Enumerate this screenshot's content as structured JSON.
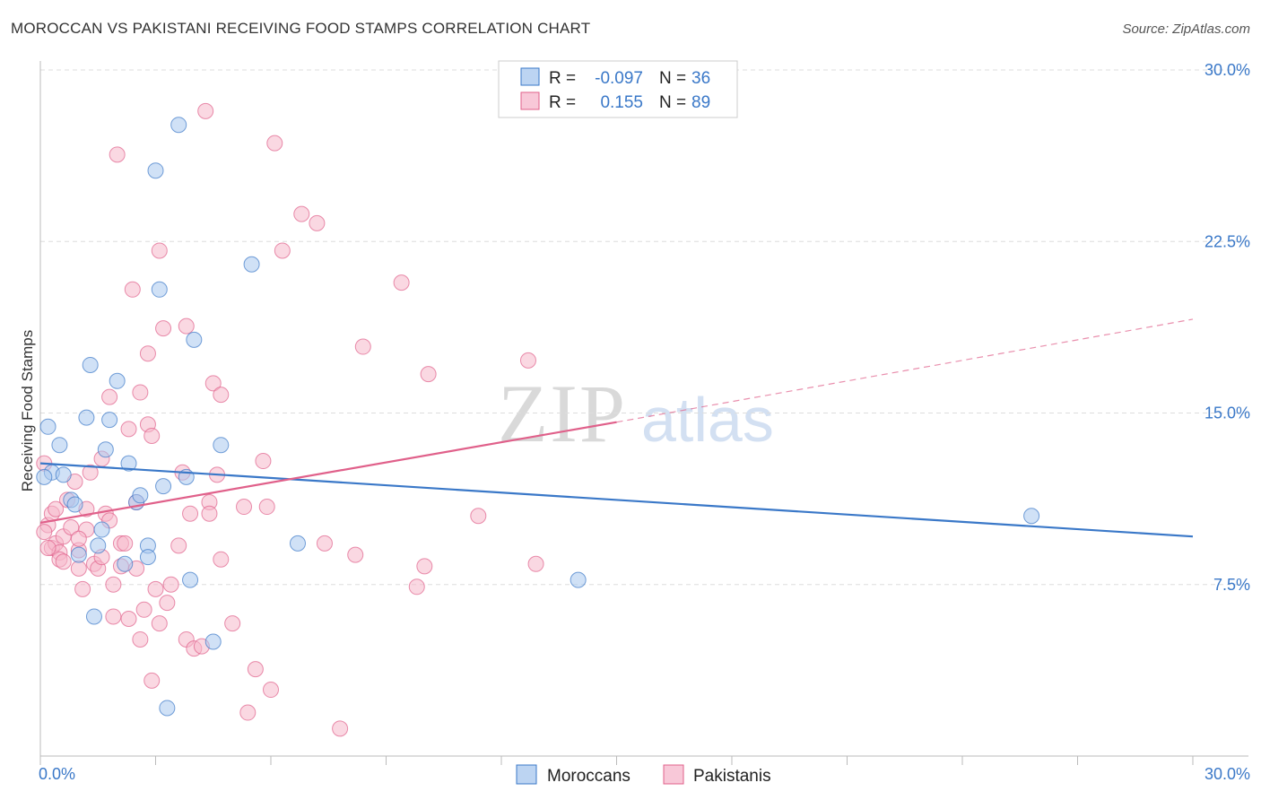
{
  "title": "MOROCCAN VS PAKISTANI RECEIVING FOOD STAMPS CORRELATION CHART",
  "source": "Source: ZipAtlas.com",
  "colors": {
    "blue": "#3a78c8",
    "blue_fill": "#aac8ee",
    "pink": "#e0608a",
    "pink_fill": "#f6b8cb",
    "grid": "#dddddd",
    "watermark": "#d8d8d8"
  },
  "legend": {
    "r_label": "R =",
    "n_label": "N =",
    "moroccans": {
      "r": "-0.097",
      "n": "36"
    },
    "pakistanis": {
      "r": "0.155",
      "n": "89"
    }
  },
  "watermark": {
    "zip": "ZIP",
    "atlas": "atlas"
  },
  "chart_data": {
    "type": "scatter",
    "title": "MOROCCAN VS PAKISTANI RECEIVING FOOD STAMPS CORRELATION CHART",
    "xlabel": "",
    "ylabel": "Receiving Food Stamps",
    "xlim": [
      0,
      30
    ],
    "ylim": [
      0,
      30
    ],
    "x_tick_labels": [
      "0.0%",
      "30.0%"
    ],
    "y_ticks": [
      7.5,
      15.0,
      22.5,
      30.0
    ],
    "y_tick_labels": [
      "7.5%",
      "15.0%",
      "22.5%",
      "30.0%"
    ],
    "grid": "horizontal dashed",
    "legend_position": "top-center and bottom-center",
    "series": [
      {
        "name": "Moroccans",
        "color": "#3a78c8",
        "trend": {
          "x": [
            0,
            30
          ],
          "y": [
            12.8,
            9.6
          ],
          "style": "solid"
        },
        "points": [
          [
            0.2,
            14.4
          ],
          [
            0.3,
            12.4
          ],
          [
            0.5,
            13.6
          ],
          [
            0.6,
            12.3
          ],
          [
            0.8,
            11.2
          ],
          [
            0.9,
            11.0
          ],
          [
            1.0,
            8.8
          ],
          [
            1.2,
            14.8
          ],
          [
            1.3,
            17.1
          ],
          [
            1.4,
            6.1
          ],
          [
            1.5,
            9.2
          ],
          [
            1.6,
            9.9
          ],
          [
            1.7,
            13.4
          ],
          [
            1.8,
            14.7
          ],
          [
            2.0,
            16.4
          ],
          [
            2.2,
            8.4
          ],
          [
            2.3,
            12.8
          ],
          [
            2.5,
            11.1
          ],
          [
            2.6,
            11.4
          ],
          [
            2.8,
            9.2
          ],
          [
            2.8,
            8.7
          ],
          [
            3.0,
            25.6
          ],
          [
            3.1,
            20.4
          ],
          [
            3.2,
            11.8
          ],
          [
            3.3,
            2.1
          ],
          [
            3.6,
            27.6
          ],
          [
            3.9,
            7.7
          ],
          [
            4.0,
            18.2
          ],
          [
            3.8,
            12.2
          ],
          [
            4.5,
            5.0
          ],
          [
            4.7,
            13.6
          ],
          [
            5.5,
            21.5
          ],
          [
            6.7,
            9.3
          ],
          [
            14.0,
            7.7
          ],
          [
            25.8,
            10.5
          ],
          [
            0.1,
            12.2
          ]
        ]
      },
      {
        "name": "Pakistanis",
        "color": "#e0608a",
        "trend": {
          "x": [
            0,
            15
          ],
          "y": [
            10.2,
            14.6
          ],
          "style": "solid",
          "extension": {
            "x": [
              15,
              30
            ],
            "y": [
              14.6,
              19.1
            ],
            "style": "dashed"
          }
        },
        "points": [
          [
            0.1,
            12.8
          ],
          [
            0.2,
            10.1
          ],
          [
            0.3,
            10.6
          ],
          [
            0.3,
            9.1
          ],
          [
            0.4,
            9.3
          ],
          [
            0.5,
            8.9
          ],
          [
            0.5,
            8.6
          ],
          [
            0.6,
            9.6
          ],
          [
            0.6,
            8.5
          ],
          [
            0.7,
            11.2
          ],
          [
            0.8,
            10.0
          ],
          [
            0.9,
            12.0
          ],
          [
            1.0,
            9.0
          ],
          [
            1.0,
            8.2
          ],
          [
            1.1,
            7.3
          ],
          [
            1.2,
            10.8
          ],
          [
            1.2,
            9.9
          ],
          [
            1.3,
            12.4
          ],
          [
            1.4,
            8.4
          ],
          [
            1.5,
            8.2
          ],
          [
            1.6,
            13.0
          ],
          [
            1.6,
            8.7
          ],
          [
            1.7,
            10.6
          ],
          [
            1.8,
            10.3
          ],
          [
            1.8,
            15.7
          ],
          [
            1.9,
            6.1
          ],
          [
            1.9,
            7.5
          ],
          [
            2.0,
            26.3
          ],
          [
            2.1,
            9.3
          ],
          [
            2.1,
            8.3
          ],
          [
            2.2,
            9.3
          ],
          [
            2.3,
            14.3
          ],
          [
            2.3,
            6.0
          ],
          [
            2.4,
            20.4
          ],
          [
            2.5,
            8.2
          ],
          [
            2.5,
            11.1
          ],
          [
            2.6,
            15.9
          ],
          [
            2.6,
            5.1
          ],
          [
            2.7,
            6.4
          ],
          [
            2.8,
            17.6
          ],
          [
            2.8,
            14.5
          ],
          [
            2.9,
            14.0
          ],
          [
            2.9,
            3.3
          ],
          [
            3.0,
            7.3
          ],
          [
            3.1,
            22.1
          ],
          [
            3.1,
            5.8
          ],
          [
            3.2,
            18.7
          ],
          [
            3.3,
            6.7
          ],
          [
            3.4,
            7.5
          ],
          [
            3.6,
            9.2
          ],
          [
            3.7,
            12.4
          ],
          [
            3.8,
            18.8
          ],
          [
            3.8,
            5.1
          ],
          [
            3.9,
            10.6
          ],
          [
            4.0,
            4.7
          ],
          [
            4.2,
            4.8
          ],
          [
            4.3,
            28.2
          ],
          [
            4.4,
            11.1
          ],
          [
            4.4,
            10.6
          ],
          [
            4.5,
            16.3
          ],
          [
            4.6,
            12.3
          ],
          [
            4.7,
            15.8
          ],
          [
            4.7,
            8.6
          ],
          [
            5.0,
            5.8
          ],
          [
            5.3,
            10.9
          ],
          [
            5.4,
            1.9
          ],
          [
            5.6,
            3.8
          ],
          [
            5.8,
            12.9
          ],
          [
            5.9,
            10.9
          ],
          [
            6.0,
            2.9
          ],
          [
            6.1,
            26.8
          ],
          [
            6.3,
            22.1
          ],
          [
            6.8,
            23.7
          ],
          [
            7.2,
            23.3
          ],
          [
            7.4,
            9.3
          ],
          [
            7.8,
            1.2
          ],
          [
            8.2,
            8.8
          ],
          [
            8.4,
            17.9
          ],
          [
            9.4,
            20.7
          ],
          [
            9.8,
            7.4
          ],
          [
            10.0,
            8.3
          ],
          [
            10.1,
            16.7
          ],
          [
            11.4,
            10.5
          ],
          [
            12.7,
            17.3
          ],
          [
            12.9,
            8.4
          ],
          [
            0.2,
            9.1
          ],
          [
            0.4,
            10.8
          ],
          [
            1.0,
            9.5
          ],
          [
            0.1,
            9.8
          ]
        ]
      }
    ]
  },
  "bottom_legend": {
    "moroccans": "Moroccans",
    "pakistanis": "Pakistanis"
  },
  "axes": {
    "x_min_label": "0.0%",
    "x_max_label": "30.0%",
    "y_label": "Receiving Food Stamps"
  }
}
